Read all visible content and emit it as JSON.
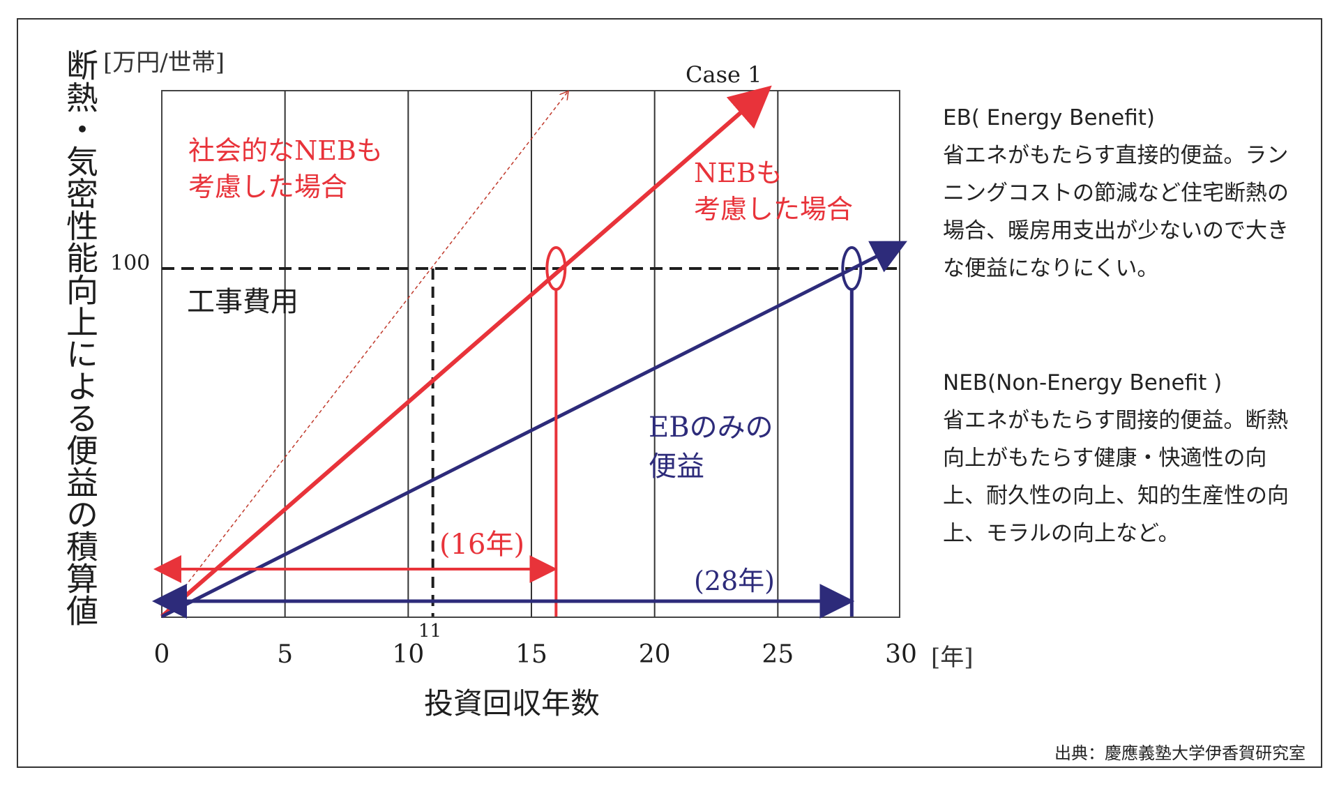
{
  "chart_data": {
    "type": "line",
    "ylabel": "断熱・気密性能向上による便益の積算値",
    "ylabel_unit": "[万円/世帯]",
    "xlabel": "投資回収年数",
    "x_unit": "[年]",
    "xlim": [
      0,
      30
    ],
    "x_ticks": [
      "0",
      "5",
      "10",
      "15",
      "20",
      "25",
      "30"
    ],
    "y_tick": "100",
    "extra_x_tick": "11",
    "series": [
      {
        "name": "Case 1",
        "x": [
          0,
          24.5
        ],
        "y": [
          0,
          151
        ],
        "color": "#e8333a"
      },
      {
        "name": "",
        "x": [
          0,
          30
        ],
        "y": [
          0,
          107
        ],
        "color": "#2d2b7a"
      },
      {
        "name": "",
        "x": [
          0,
          16.5
        ],
        "y": [
          0,
          151
        ],
        "color": "#c0392b"
      }
    ],
    "cost_line": {
      "label": "工事費用",
      "y": 100
    },
    "intersections": [
      {
        "x": 16,
        "y": 100,
        "color": "#e8333a"
      },
      {
        "x": 28,
        "y": 100,
        "color": "#2d2b7a"
      }
    ],
    "vline_dashed_x": 11,
    "annotations": {
      "social_neb": "社会的なNEBも\n考慮した場合",
      "neb": "NEBも\n考慮した場合",
      "eb_only": "EBのみの\n便益",
      "payback_neb": "(16年)",
      "payback_eb": "(28年)"
    }
  },
  "side": {
    "eb_head": "EB( Energy Benefit)",
    "eb_body": "省エネがもたらす直接的便益。ランニングコストの節減など住宅断熱の場合、暖房用支出が少ないので大きな便益になりにくい。",
    "neb_head": "NEB(Non-Energy Benefit )",
    "neb_body": "省エネがもたらす間接的便益。断熱向上がもたらす健康・快適性の向上、耐久性の向上、知的生産性の向上、モラルの向上など。"
  },
  "source": "出典：慶應義塾大学伊香賀研究室",
  "colors": {
    "red": "#e8333a",
    "navy": "#2d2b7a",
    "grid": "#333333"
  }
}
